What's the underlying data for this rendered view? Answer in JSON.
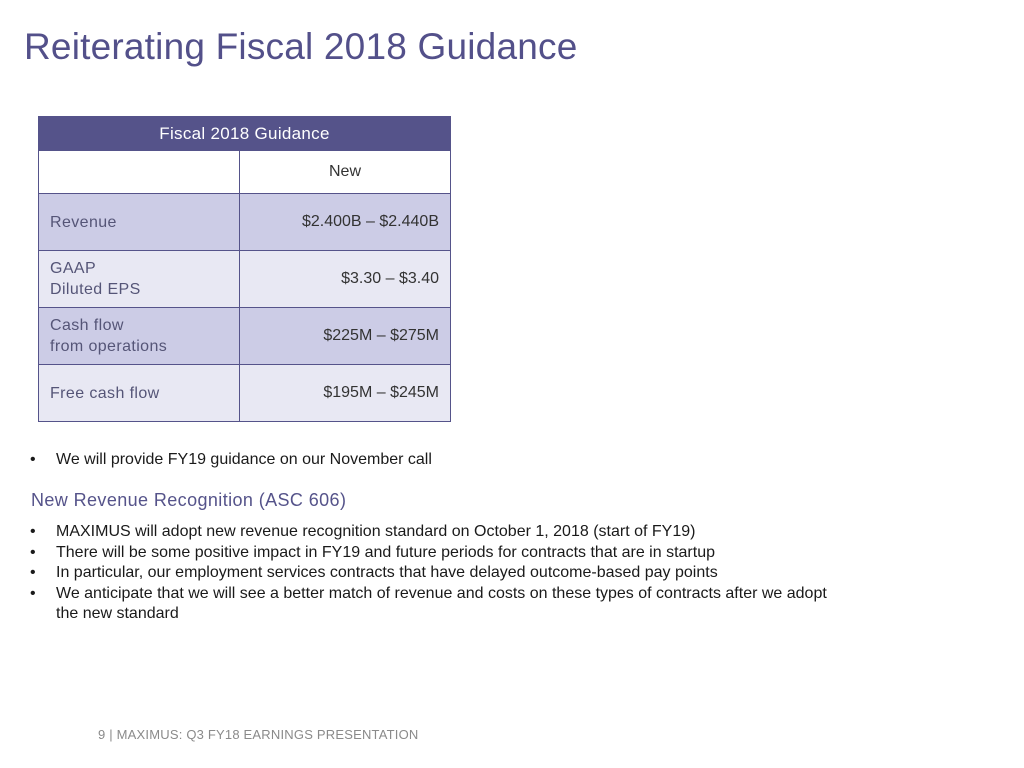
{
  "title": "Reiterating Fiscal 2018 Guidance",
  "table": {
    "header": "Fiscal 2018 Guidance",
    "column_label": "New",
    "rows": [
      {
        "label_line1": "Revenue",
        "label_line2": "",
        "value": "$2.400B – $2.440B"
      },
      {
        "label_line1": "GAAP",
        "label_line2": "Diluted EPS",
        "value": "$3.30 – $3.40"
      },
      {
        "label_line1": "Cash flow",
        "label_line2": "from operations",
        "value": "$225M – $275M"
      },
      {
        "label_line1": "Free cash flow",
        "label_line2": "",
        "value": "$195M – $245M"
      }
    ]
  },
  "bullet_top": "We will provide FY19 guidance on our November call",
  "bullet_char": "•",
  "section_heading": "New Revenue Recognition (ASC 606)",
  "section_bullets": [
    "MAXIMUS will adopt new revenue recognition standard on October 1, 2018 (start of FY19)",
    "There will be some positive impact in FY19 and future periods for contracts that are in startup",
    "In particular, our employment services contracts that have delayed outcome-based pay points",
    "We anticipate that we will see a better match of revenue and costs on these types of contracts after we adopt the new standard"
  ],
  "footer": "9 | MAXIMUS: Q3 FY18 EARNINGS PRESENTATION",
  "colors": {
    "accent": "#55538a",
    "row_dark": "#cccce6",
    "row_light": "#e8e8f3"
  }
}
